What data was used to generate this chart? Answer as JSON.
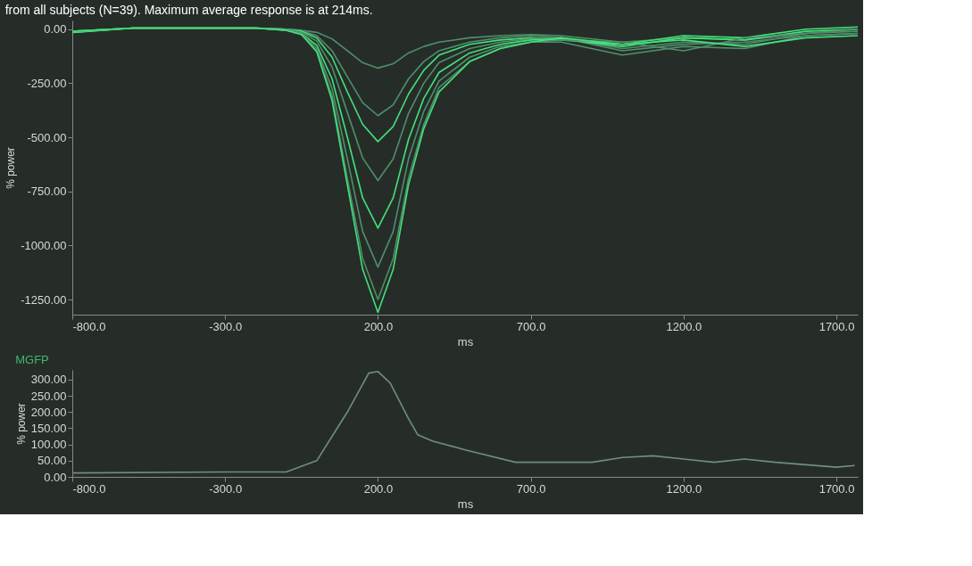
{
  "chart_data": [
    {
      "type": "line",
      "title": "from all subjects (N=39). Maximum average response is at 214ms.",
      "xlabel": "ms",
      "ylabel": "% power",
      "x": [
        -800,
        -600,
        -400,
        -200,
        -100,
        -50,
        0,
        50,
        100,
        150,
        200,
        250,
        300,
        350,
        400,
        500,
        600,
        700,
        800,
        1000,
        1200,
        1400,
        1600,
        1770
      ],
      "xlim": [
        -800,
        1770
      ],
      "ylim": [
        -1320,
        40
      ],
      "xticks": [
        {
          "value": -800,
          "label": "-800.0"
        },
        {
          "value": -300,
          "label": "-300.0"
        },
        {
          "value": 200,
          "label": "200.0"
        },
        {
          "value": 700,
          "label": "700.0"
        },
        {
          "value": 1200,
          "label": "1200.0"
        },
        {
          "value": 1700,
          "label": "1700.0"
        }
      ],
      "yticks": [
        {
          "value": 0,
          "label": "0.00"
        },
        {
          "value": -250,
          "label": "-250.00"
        },
        {
          "value": -500,
          "label": "-500.00"
        },
        {
          "value": -750,
          "label": "-750.00"
        },
        {
          "value": -1000,
          "label": "-1000.00"
        },
        {
          "value": -1250,
          "label": "-1250.00"
        }
      ],
      "grid": false,
      "legend": false,
      "line_style": "solid",
      "series": [
        {
          "color": "#4f8f6a",
          "values": [
            -10,
            5,
            5,
            5,
            0,
            -5,
            -15,
            -45,
            -100,
            -155,
            -180,
            -160,
            -110,
            -80,
            -60,
            -40,
            -30,
            -25,
            -30,
            -60,
            -40,
            -50,
            -20,
            -10
          ]
        },
        {
          "color": "#4f8f6a",
          "values": [
            -10,
            5,
            5,
            5,
            0,
            -8,
            -30,
            -100,
            -220,
            -340,
            -400,
            -350,
            -230,
            -150,
            -100,
            -60,
            -40,
            -30,
            -40,
            -90,
            -60,
            -70,
            -20,
            0
          ]
        },
        {
          "color": "#45e07a",
          "values": [
            -15,
            5,
            5,
            5,
            0,
            -10,
            -40,
            -130,
            -290,
            -440,
            -520,
            -450,
            -300,
            -190,
            -120,
            -70,
            -50,
            -40,
            -50,
            -70,
            -30,
            -40,
            0,
            10
          ]
        },
        {
          "color": "#4f8f6a",
          "values": [
            -10,
            5,
            5,
            5,
            0,
            -15,
            -55,
            -175,
            -385,
            -595,
            -700,
            -600,
            -390,
            -250,
            -155,
            -90,
            -60,
            -45,
            -40,
            -100,
            -70,
            -60,
            -30,
            -20
          ]
        },
        {
          "color": "#45e07a",
          "values": [
            -15,
            5,
            5,
            5,
            -5,
            -20,
            -75,
            -230,
            -500,
            -780,
            -920,
            -780,
            -510,
            -320,
            -200,
            -110,
            -70,
            -50,
            -45,
            -80,
            -40,
            -50,
            -10,
            0
          ]
        },
        {
          "color": "#4f8f6a",
          "values": [
            -10,
            5,
            5,
            5,
            -5,
            -20,
            -90,
            -275,
            -600,
            -935,
            -1100,
            -935,
            -600,
            -380,
            -240,
            -130,
            -80,
            -60,
            -60,
            -120,
            -80,
            -90,
            -30,
            -20
          ]
        },
        {
          "color": "#4f8f6a",
          "values": [
            -10,
            5,
            5,
            5,
            -5,
            -25,
            -100,
            -310,
            -690,
            -1060,
            -1250,
            -1060,
            -690,
            -440,
            -270,
            -150,
            -90,
            -60,
            -50,
            -60,
            -100,
            -40,
            -20,
            0
          ]
        },
        {
          "color": "#45e07a",
          "values": [
            -10,
            5,
            5,
            5,
            -5,
            -25,
            -105,
            -330,
            -720,
            -1110,
            -1310,
            -1110,
            -720,
            -460,
            -290,
            -150,
            -90,
            -60,
            -40,
            -70,
            -50,
            -80,
            -40,
            -30
          ]
        }
      ]
    },
    {
      "type": "line",
      "title": "MGFP",
      "xlabel": "ms",
      "ylabel": "% power",
      "x": [
        -800,
        -300,
        -100,
        0,
        100,
        170,
        200,
        240,
        300,
        330,
        380,
        500,
        650,
        800,
        900,
        1000,
        1100,
        1200,
        1300,
        1400,
        1500,
        1700,
        1760
      ],
      "xlim": [
        -800,
        1770
      ],
      "ylim": [
        0,
        330
      ],
      "xticks": [
        {
          "value": -800,
          "label": "-800.0"
        },
        {
          "value": -300,
          "label": "-300.0"
        },
        {
          "value": 200,
          "label": "200.0"
        },
        {
          "value": 700,
          "label": "700.0"
        },
        {
          "value": 1200,
          "label": "1200.0"
        },
        {
          "value": 1700,
          "label": "1700.0"
        }
      ],
      "yticks": [
        {
          "value": 0,
          "label": "0.00"
        },
        {
          "value": 50,
          "label": "50.00"
        },
        {
          "value": 100,
          "label": "100.00"
        },
        {
          "value": 150,
          "label": "150.00"
        },
        {
          "value": 200,
          "label": "200.00"
        },
        {
          "value": 250,
          "label": "250.00"
        },
        {
          "value": 300,
          "label": "300.00"
        }
      ],
      "grid": false,
      "legend": false,
      "line_style": "solid",
      "series": [
        {
          "color": "#6f8f7a",
          "values": [
            12,
            15,
            15,
            50,
            200,
            320,
            325,
            290,
            180,
            130,
            110,
            80,
            45,
            45,
            45,
            60,
            65,
            55,
            45,
            55,
            45,
            30,
            35
          ]
        }
      ]
    }
  ]
}
